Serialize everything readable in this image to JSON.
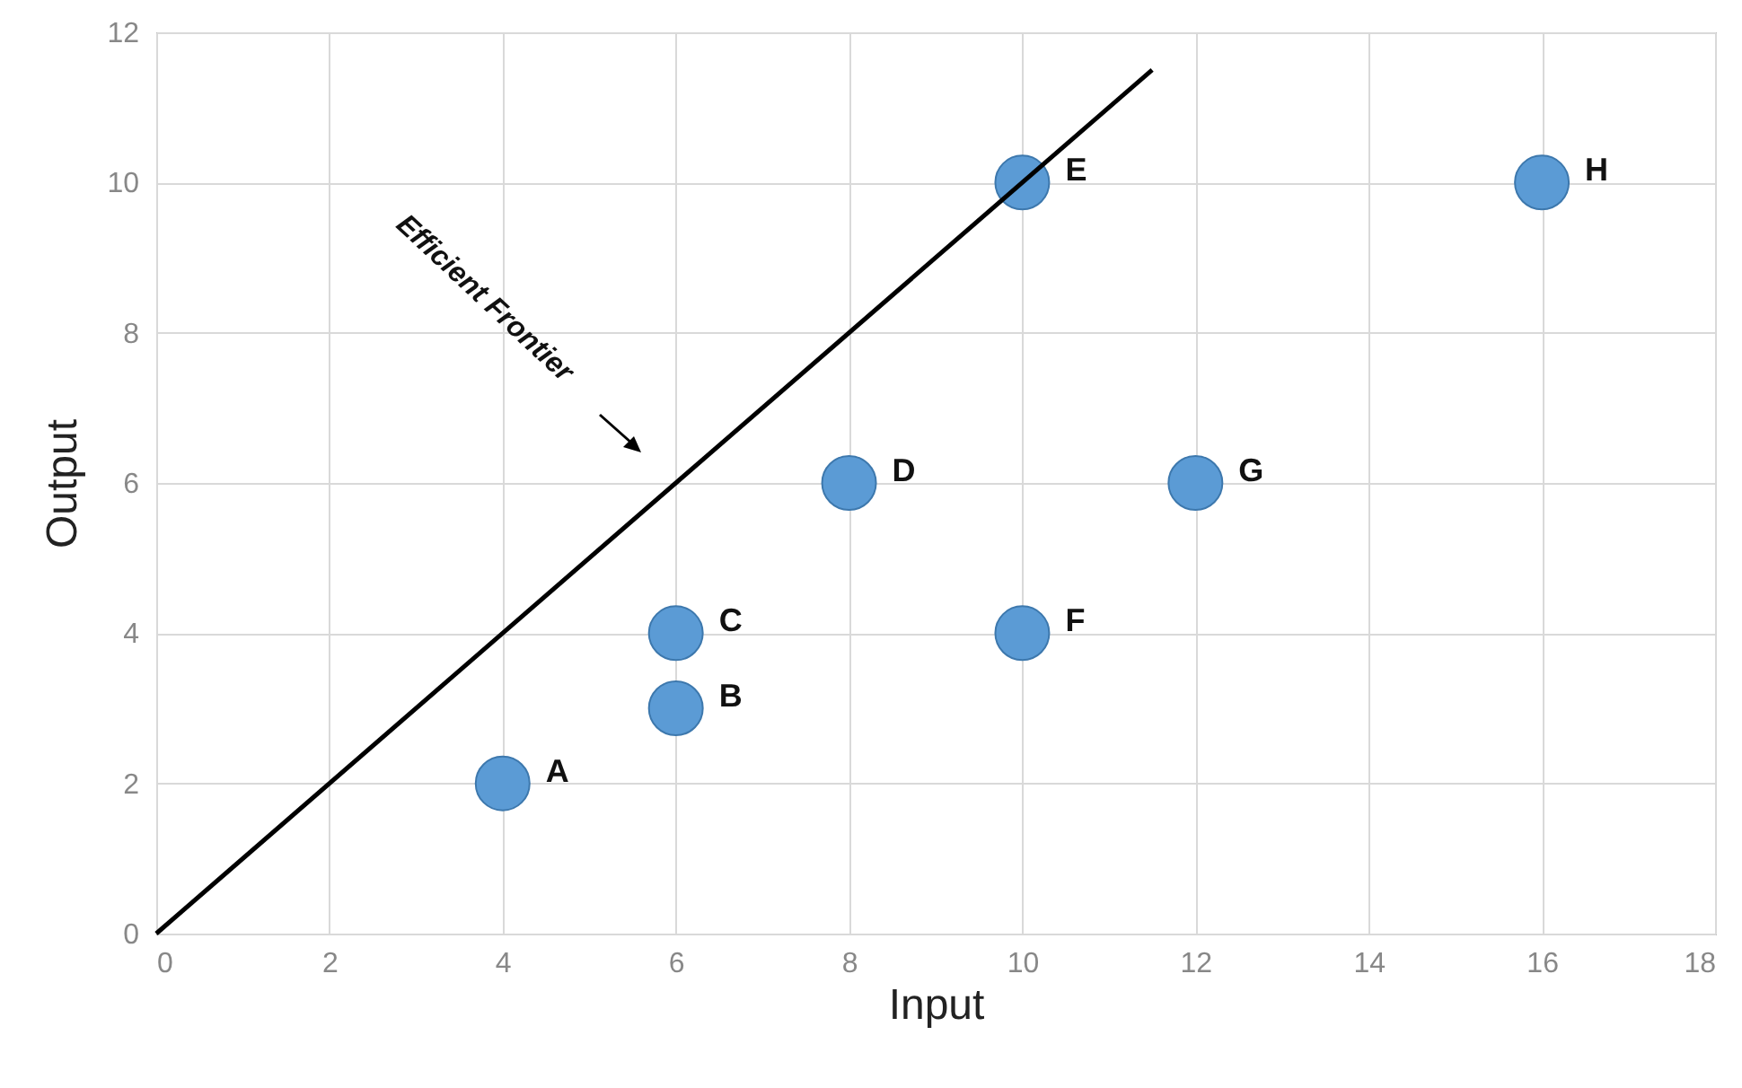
{
  "chart_data": {
    "type": "scatter",
    "xlabel": "Input",
    "ylabel": "Output",
    "xlim": [
      0,
      18
    ],
    "ylim": [
      0,
      12
    ],
    "xticks": [
      0,
      2,
      4,
      6,
      8,
      10,
      12,
      14,
      16,
      18
    ],
    "yticks": [
      0,
      2,
      4,
      6,
      8,
      10,
      12
    ],
    "grid": true,
    "marker": "circle",
    "series": [
      {
        "color": "#5b9bd5",
        "x": [
          4,
          6,
          6,
          8,
          10,
          10,
          12,
          16
        ],
        "values": [
          2,
          3,
          4,
          6,
          10,
          4,
          6,
          10
        ]
      },
      {
        "type": "line",
        "marker": "none",
        "color": "#000000",
        "x": [
          0,
          11.5
        ],
        "values": [
          0,
          11.5
        ]
      }
    ],
    "annotations": [
      {
        "text": "A",
        "x": 4,
        "y": 2
      },
      {
        "text": "B",
        "x": 6,
        "y": 3
      },
      {
        "text": "C",
        "x": 6,
        "y": 4
      },
      {
        "text": "D",
        "x": 8,
        "y": 6
      },
      {
        "text": "E",
        "x": 10,
        "y": 10
      },
      {
        "text": "F",
        "x": 10,
        "y": 4
      },
      {
        "text": "G",
        "x": 12,
        "y": 6
      },
      {
        "text": "H",
        "x": 16,
        "y": 10
      },
      "Efficient Frontier"
    ]
  }
}
